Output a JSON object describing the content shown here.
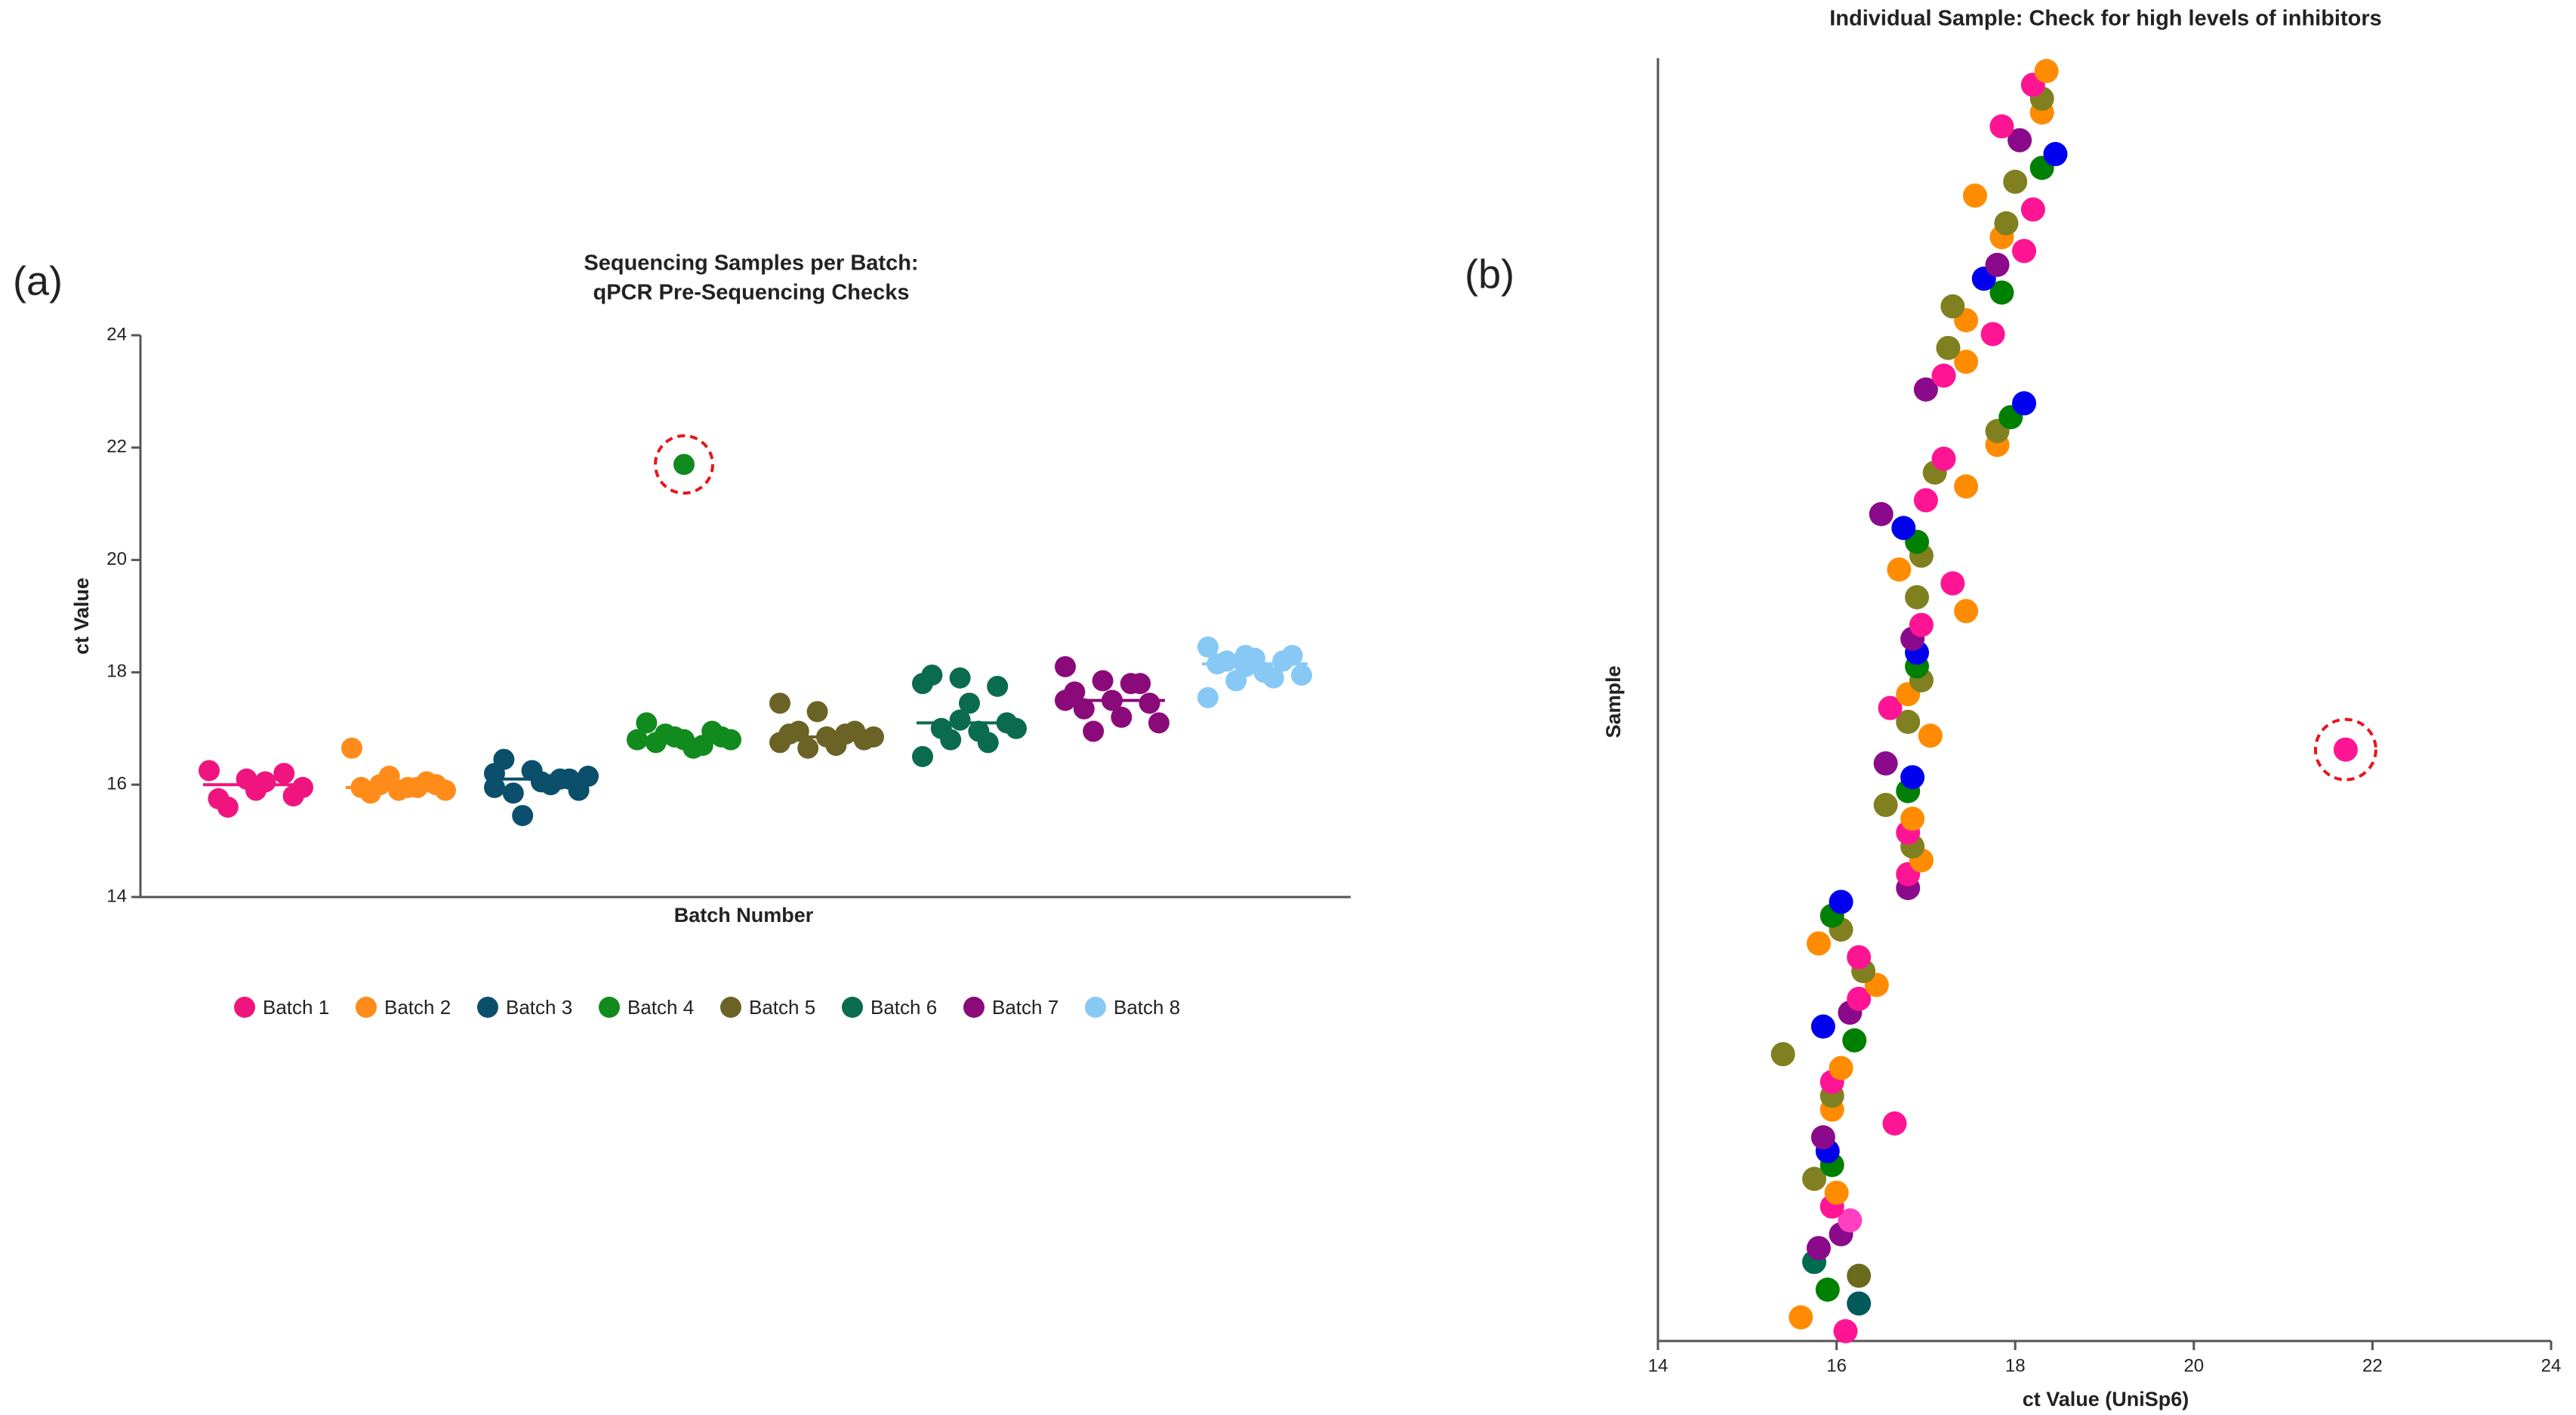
{
  "chart_data": [
    {
      "type": "strip",
      "panel_label": "(a)",
      "title": [
        "Sequencing Samples per Batch:",
        "qPCR Pre-Sequencing Checks"
      ],
      "x_label": "Batch Number",
      "y_label": "ct Value",
      "ylim": [
        14,
        24
      ],
      "yticks": [
        14,
        16,
        18,
        20,
        22,
        24
      ],
      "highlight": {
        "series": 3,
        "index": 0
      },
      "series": [
        {
          "name": "Batch 1",
          "color": "#f0147f",
          "median": 16.0,
          "values": [
            16.25,
            16.1,
            16.2,
            15.75,
            15.9,
            15.8,
            15.6,
            16.05,
            15.95
          ]
        },
        {
          "name": "Batch 2",
          "color": "#ff8c1a",
          "median": 15.95,
          "values": [
            16.65,
            16.15,
            16.05,
            15.95,
            15.9,
            16.0,
            15.85,
            15.95,
            15.9,
            16.0,
            15.95
          ]
        },
        {
          "name": "Batch 3",
          "color": "#0b4f6c",
          "median": 16.1,
          "values": [
            16.2,
            16.25,
            16.1,
            16.45,
            16.05,
            15.9,
            15.85,
            16.0,
            16.15,
            15.45,
            16.1,
            15.95
          ]
        },
        {
          "name": "Batch 4",
          "color": "#118a1e",
          "median": 16.8,
          "values": [
            21.7,
            16.85,
            16.95,
            17.1,
            16.8,
            16.85,
            16.75,
            16.65,
            16.8,
            16.9,
            16.7,
            16.8
          ]
        },
        {
          "name": "Batch 5",
          "color": "#6b6326",
          "median": 16.85,
          "values": [
            17.45,
            17.3,
            16.95,
            16.9,
            16.85,
            16.8,
            16.95,
            16.7,
            16.85,
            16.65,
            16.9,
            16.75
          ]
        },
        {
          "name": "Batch 6",
          "color": "#0b6b4f",
          "median": 17.1,
          "values": [
            17.8,
            17.9,
            17.75,
            17.95,
            17.45,
            17.1,
            17.0,
            16.95,
            17.0,
            16.8,
            16.75,
            16.5,
            17.15
          ]
        },
        {
          "name": "Batch 7",
          "color": "#8b0a7a",
          "median": 17.5,
          "values": [
            18.1,
            17.85,
            17.8,
            17.65,
            17.5,
            17.45,
            17.35,
            17.2,
            17.1,
            16.95,
            17.8,
            17.5
          ]
        },
        {
          "name": "Batch 8",
          "color": "#87c8f5",
          "median": 18.15,
          "values": [
            18.45,
            18.3,
            18.2,
            18.15,
            18.25,
            18.3,
            18.2,
            18.0,
            17.95,
            17.85,
            17.9,
            17.55,
            18.1
          ]
        }
      ]
    },
    {
      "type": "dot",
      "panel_label": "(b)",
      "title": "Individual Sample: Check for high levels of inhibitors",
      "x_label": "ct Value (UniSp6)",
      "y_label": "Sample",
      "xlim": [
        14,
        24
      ],
      "xticks": [
        14,
        16,
        18,
        20,
        22,
        24
      ],
      "highlight": 42,
      "values": [
        16.1,
        15.6,
        16.25,
        15.9,
        16.25,
        15.75,
        15.8,
        16.05,
        16.15,
        15.95,
        16.0,
        15.75,
        15.95,
        15.9,
        15.85,
        16.65,
        15.95,
        15.95,
        15.95,
        16.05,
        15.4,
        16.2,
        15.85,
        16.15,
        16.25,
        16.45,
        16.3,
        16.25,
        15.8,
        16.05,
        15.95,
        16.05,
        16.8,
        16.8,
        16.95,
        16.85,
        16.8,
        16.85,
        16.55,
        16.8,
        16.85,
        16.55,
        21.7,
        17.05,
        16.8,
        16.6,
        16.8,
        16.95,
        16.9,
        16.9,
        16.85,
        16.95,
        17.45,
        16.9,
        17.3,
        16.7,
        16.95,
        16.9,
        16.75,
        16.5,
        17.0,
        17.45,
        17.1,
        17.2,
        17.8,
        17.8,
        17.95,
        18.1,
        17.0,
        17.2,
        17.45,
        17.25,
        17.75,
        17.45,
        17.3,
        17.85,
        17.65,
        17.8,
        18.1,
        17.85,
        17.9,
        18.2,
        17.55,
        18.0,
        18.3,
        18.45,
        18.05,
        17.85,
        18.3,
        18.3,
        18.2,
        18.35
      ],
      "colors": [
        "#ff1493",
        "#ff8c00",
        "#005a5a",
        "#008000",
        "#6b6b1e",
        "#006b50",
        "#8b0a8b",
        "#8b0a8b",
        "#ff40c0",
        "#ff1493",
        "#ff8c00",
        "#808020",
        "#008000",
        "#0000ee",
        "#8b0a8b",
        "#ff1493",
        "#ff8c00",
        "#808020",
        "#ff1493",
        "#ff8c00",
        "#808020",
        "#008000",
        "#0000ee",
        "#8b0a8b",
        "#ff1493",
        "#ff8c00",
        "#808020",
        "#ff1493",
        "#ff8c00",
        "#808020",
        "#008000",
        "#0000ee",
        "#8b0a8b",
        "#ff1493",
        "#ff8c00",
        "#808020",
        "#ff1493",
        "#ff8c00",
        "#808020",
        "#008000",
        "#0000ee",
        "#8b0a8b",
        "#ff1493",
        "#ff8c00",
        "#808020",
        "#ff1493",
        "#ff8c00",
        "#808020",
        "#008000",
        "#0000ee",
        "#8b0a8b",
        "#ff1493",
        "#ff8c00",
        "#808020",
        "#ff1493",
        "#ff8c00",
        "#808020",
        "#008000",
        "#0000ee",
        "#8b0a8b",
        "#ff1493",
        "#ff8c00",
        "#808020",
        "#ff1493",
        "#ff8c00",
        "#808020",
        "#008000",
        "#0000ee",
        "#8b0a8b",
        "#ff1493",
        "#ff8c00",
        "#808020",
        "#ff1493",
        "#ff8c00",
        "#808020",
        "#008000",
        "#0000ee",
        "#8b0a8b",
        "#ff1493",
        "#ff8c00",
        "#808020",
        "#ff1493",
        "#ff8c00",
        "#808020",
        "#008000",
        "#0000ee",
        "#8b0a8b",
        "#ff1493",
        "#ff8c00",
        "#808020",
        "#ff1493",
        "#ff8c00"
      ]
    }
  ]
}
